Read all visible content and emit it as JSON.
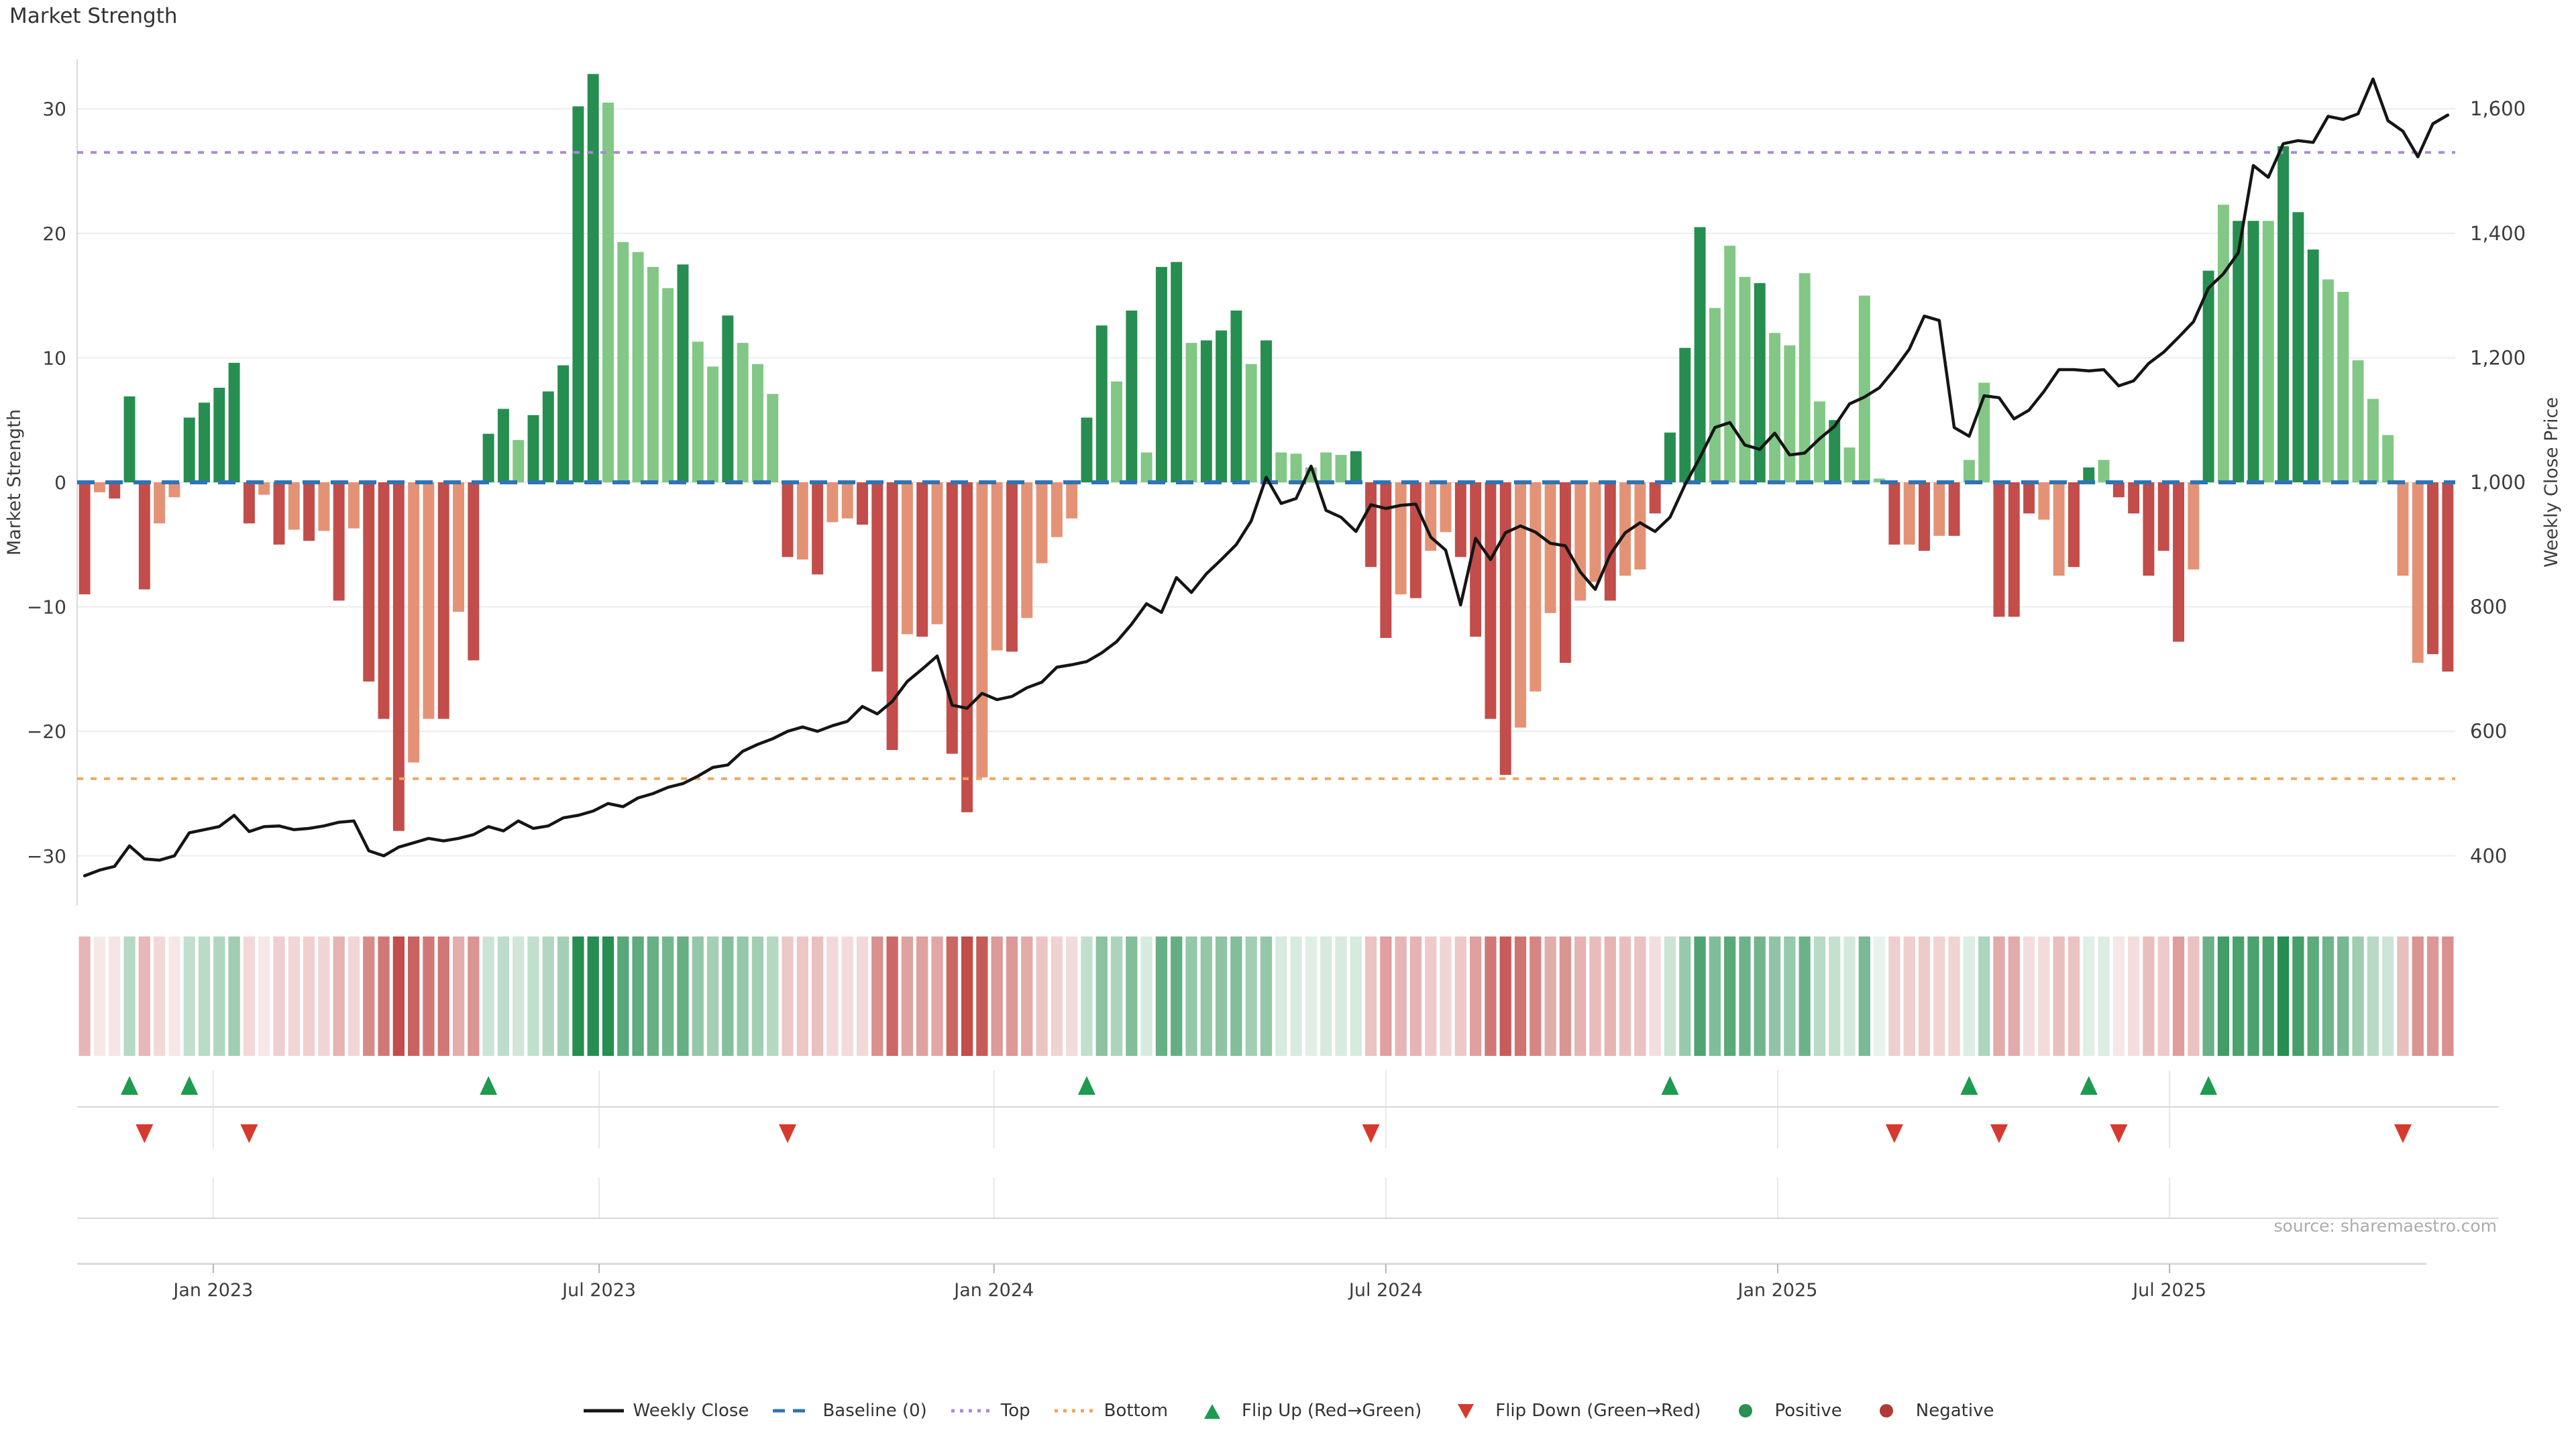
{
  "title": "Market Strength",
  "source_note": "source: sharemaestro.com",
  "axes": {
    "left": {
      "title": "Market Strength",
      "tick_labels": [
        "30",
        "20",
        "10",
        "0",
        "−10",
        "−20",
        "−30"
      ],
      "tick_values": [
        30,
        20,
        10,
        0,
        -10,
        -20,
        -30
      ],
      "range": [
        -34,
        34
      ]
    },
    "right": {
      "title": "Weekly Close Price",
      "tick_labels": [
        "1,600",
        "1,400",
        "1,200",
        "1,000",
        "800",
        "600",
        "400"
      ],
      "tick_values": [
        1600,
        1400,
        1200,
        1000,
        800,
        600,
        400
      ],
      "range": [
        320,
        1680
      ]
    },
    "x": {
      "tick_labels": [
        "Jan 2023",
        "Jul 2023",
        "Jan 2024",
        "Jul 2024",
        "Jan 2025",
        "Jul 2025"
      ],
      "tick_weeks": [
        8.6,
        34.4,
        60.8,
        87.0,
        113.2,
        139.4
      ]
    }
  },
  "chart_data": {
    "type": "bar+line",
    "x_unit": "week index (weekly data, Nov 2022 – Oct 2025)",
    "n_points": 159,
    "series": [
      {
        "name": "Market Strength",
        "type": "bar",
        "axis": "left",
        "values": [
          -9,
          -0.8,
          -1.3,
          6.9,
          -8.6,
          -3.3,
          -1.2,
          5.2,
          6.4,
          7.6,
          9.6,
          -3.3,
          -1,
          -5,
          -3.8,
          -4.7,
          -3.9,
          -9.5,
          -3.7,
          -16,
          -19,
          -28,
          -22.5,
          -19,
          -19,
          -10.4,
          -14.3,
          3.9,
          5.9,
          3.4,
          5.4,
          7.3,
          9.4,
          30.2,
          32.8,
          30.5,
          19.3,
          18.5,
          17.3,
          15.6,
          17.5,
          11.3,
          9.3,
          13.4,
          11.2,
          9.5,
          7.1,
          -6,
          -6.2,
          -7.4,
          -3.2,
          -2.9,
          -3.4,
          -15.2,
          -21.5,
          -12.2,
          -12.4,
          -11.4,
          -21.8,
          -26.5,
          -23.7,
          -13.5,
          -13.6,
          -10.9,
          -6.5,
          -4.4,
          -2.9,
          5.2,
          12.6,
          8.1,
          13.8,
          2.4,
          17.3,
          17.7,
          11.2,
          11.4,
          12.2,
          13.8,
          9.5,
          11.4,
          2.4,
          2.3,
          1.2,
          2.4,
          2.2,
          2.5,
          -6.8,
          -12.5,
          -9,
          -9.3,
          -5.5,
          -4,
          -6,
          -12.4,
          -19,
          -23.5,
          -19.7,
          -16.8,
          -10.5,
          -14.5,
          -9.5,
          -8,
          -9.5,
          -7.5,
          -7,
          -2.5,
          4,
          10.8,
          20.5,
          14,
          19,
          16.5,
          16,
          12,
          11,
          16.8,
          6.5,
          5,
          2.8,
          15,
          0.3,
          -5,
          -5,
          -5.5,
          -4.3,
          -4.3,
          1.8,
          8,
          -10.8,
          -10.8,
          -2.5,
          -3,
          -7.5,
          -6.8,
          1.2,
          1.8,
          -1.2,
          -2.5,
          -7.5,
          -5.5,
          -12.8,
          -7,
          17,
          22.3,
          21,
          21,
          21,
          27,
          21.7,
          18.7,
          16.3,
          15.3,
          9.8,
          6.7,
          3.8,
          -7.5,
          -14.5,
          -13.8,
          -15.2
        ],
        "strong_shade_flags": "101110011111010101011100101110111110000010010001010011101011001000011010110111010000011101001111000100100111100010000100010101001110011011111010110111000000011 01",
        "color_positive_strong": "#268e50",
        "color_positive_light": "#82c785",
        "color_negative_strong": "#c24d4a",
        "color_negative_light": "#e49276"
      },
      {
        "name": "Weekly Close",
        "type": "line",
        "axis": "right",
        "color": "#151515",
        "values": [
          368,
          377,
          383,
          416,
          395,
          393,
          400,
          437,
          442,
          447,
          465,
          439,
          447,
          448,
          442,
          444,
          448,
          454,
          456,
          408,
          400,
          414,
          421,
          428,
          424,
          428,
          434,
          447,
          440,
          456,
          444,
          448,
          461,
          465,
          472,
          484,
          479,
          493,
          500,
          510,
          516,
          528,
          542,
          546,
          568,
          579,
          588,
          600,
          607,
          600,
          609,
          616,
          640,
          628,
          648,
          680,
          700,
          721,
          642,
          637,
          661,
          651,
          656,
          670,
          679,
          703,
          707,
          712,
          726,
          744,
          772,
          805,
          791,
          847,
          823,
          853,
          876,
          900,
          938,
          1008,
          966,
          974,
          1026,
          955,
          944,
          921,
          964,
          958,
          963,
          965,
          912,
          891,
          803,
          910,
          876,
          919,
          930,
          920,
          902,
          898,
          856,
          828,
          884,
          919,
          935,
          921,
          944,
          996,
          1040,
          1088,
          1096,
          1060,
          1053,
          1079,
          1044,
          1047,
          1070,
          1090,
          1126,
          1137,
          1152,
          1181,
          1214,
          1267,
          1260,
          1088,
          1074,
          1139,
          1136,
          1102,
          1116,
          1146,
          1181,
          1181,
          1179,
          1181,
          1155,
          1163,
          1191,
          1209,
          1233,
          1258,
          1312,
          1335,
          1369,
          1509,
          1490,
          1544,
          1549,
          1546,
          1588,
          1583,
          1592,
          1648,
          1581,
          1564,
          1523,
          1576,
          1590
        ]
      }
    ],
    "reference_lines": [
      {
        "name": "Baseline (0)",
        "axis": "left",
        "value": 0,
        "style": "dashed",
        "color": "#2f74b5"
      },
      {
        "name": "Top",
        "axis": "left",
        "value": 26.5,
        "style": "dotted",
        "color": "#a78bd6"
      },
      {
        "name": "Bottom",
        "axis": "left",
        "value": -23.8,
        "style": "dotted",
        "color": "#f2a55e"
      }
    ],
    "markers": {
      "flip_up": {
        "label": "Flip Up (Red→Green)",
        "color": "#1d9b4e",
        "weeks": [
          3,
          7,
          27,
          67,
          106,
          126,
          134,
          142
        ]
      },
      "flip_down": {
        "label": "Flip Down (Green→Red)",
        "color": "#d63a2f",
        "weeks": [
          4,
          11,
          47,
          86,
          121,
          128,
          136,
          155
        ]
      }
    },
    "heatmap": {
      "description": "strip of weekly cells tinted by Market Strength value (red negative → green positive)"
    },
    "grid": "horizontal light gray lines at left-axis ticks; vertical light lines at x ticks in marker rows"
  },
  "legend": {
    "items": [
      {
        "label": "Weekly Close",
        "swatch": "solid",
        "color": "#151515"
      },
      {
        "label": "Baseline (0)",
        "swatch": "dashed",
        "color": "#2f74b5"
      },
      {
        "label": "Top",
        "swatch": "dotted",
        "color": "#a78bd6"
      },
      {
        "label": "Bottom",
        "swatch": "dotted",
        "color": "#f2a55e"
      },
      {
        "label": "Flip Up (Red→Green)",
        "swatch": "tri-up",
        "color": "#1d9b4e"
      },
      {
        "label": "Flip Down (Green→Red)",
        "swatch": "tri-down",
        "color": "#d63a2f"
      },
      {
        "label": "Positive",
        "swatch": "dot",
        "color": "#2a9150"
      },
      {
        "label": "Negative",
        "swatch": "dot",
        "color": "#b03a37"
      }
    ]
  },
  "colors": {
    "grid": "#ececec",
    "spine": "#d9d9d9",
    "axis_text": "#3d3d3d",
    "source_text": "#ababab",
    "marker_grid": "#e7e7e7",
    "row_line": "#d8d8d8"
  }
}
